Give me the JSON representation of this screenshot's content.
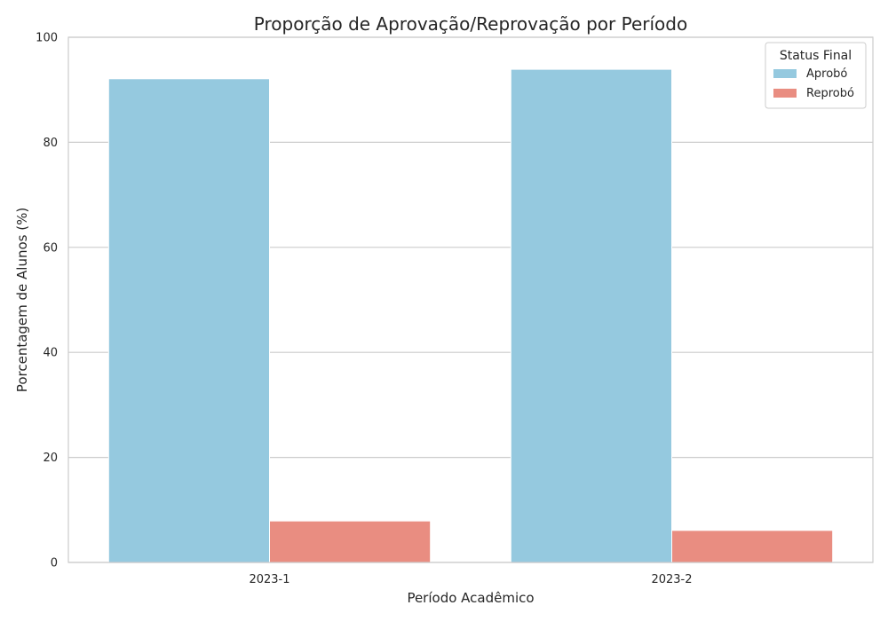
{
  "chart_data": {
    "type": "bar",
    "title": "Proporção de Aprovação/Reprovação por Período",
    "xlabel": "Período Acadêmico",
    "ylabel": "Porcentagem de Alunos (%)",
    "categories": [
      "2023-1",
      "2023-2"
    ],
    "series": [
      {
        "name": "Aprobó",
        "values": [
          92.1,
          93.9
        ],
        "color": "#95c9df"
      },
      {
        "name": "Reprobó",
        "values": [
          7.9,
          6.1
        ],
        "color": "#e98d81"
      }
    ],
    "ylim": [
      0,
      100
    ],
    "yticks": [
      0,
      20,
      40,
      60,
      80,
      100
    ],
    "grid": "y",
    "legend": {
      "title": "Status Final",
      "position": "top-right"
    }
  }
}
